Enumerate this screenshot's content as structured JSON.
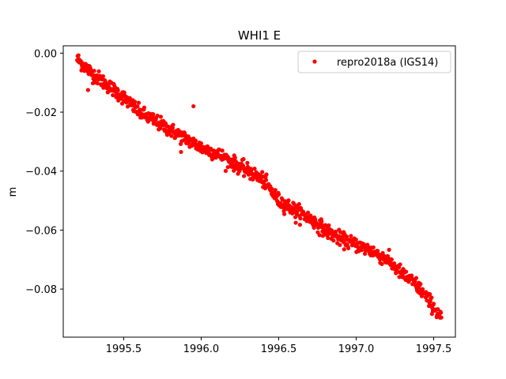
{
  "chart_data": {
    "type": "scatter",
    "title": "WHI1 E",
    "xlabel": "",
    "ylabel": "m",
    "xlim": [
      1995.11,
      1997.64
    ],
    "ylim": [
      -0.0963,
      0.0025
    ],
    "x_ticks": [
      "1995.5",
      "1996.0",
      "1996.5",
      "1997.0",
      "1997.5"
    ],
    "x_tick_values": [
      1995.5,
      1996.0,
      1996.5,
      1997.0,
      1997.5
    ],
    "y_ticks": [
      "0.00",
      "−0.02",
      "−0.04",
      "−0.06",
      "−0.08"
    ],
    "y_tick_values": [
      0.0,
      -0.02,
      -0.04,
      -0.06,
      -0.08
    ],
    "grid": false,
    "legend_position": "top-right",
    "series": [
      {
        "name": "repro2018a (IGS14)",
        "color": "#ff0000",
        "marker": "circle",
        "trend": {
          "x": [
            1995.2,
            1995.3,
            1995.4,
            1995.5,
            1995.6,
            1995.7,
            1995.8,
            1995.9,
            1996.0,
            1996.1,
            1996.2,
            1996.3,
            1996.4,
            1996.5,
            1996.6,
            1996.7,
            1996.8,
            1996.9,
            1997.0,
            1997.1,
            1997.2,
            1997.3,
            1997.4,
            1997.5,
            1997.55
          ],
          "y": [
            -0.002,
            -0.007,
            -0.011,
            -0.015,
            -0.02,
            -0.023,
            -0.026,
            -0.029,
            -0.032,
            -0.034,
            -0.037,
            -0.04,
            -0.043,
            -0.05,
            -0.053,
            -0.056,
            -0.06,
            -0.063,
            -0.065,
            -0.067,
            -0.07,
            -0.075,
            -0.079,
            -0.086,
            -0.09
          ]
        },
        "scatter_sd": 0.0012,
        "outliers": [
          {
            "x": 1995.27,
            "y": -0.0125
          },
          {
            "x": 1995.95,
            "y": -0.018
          },
          {
            "x": 1995.87,
            "y": -0.0335
          },
          {
            "x": 1996.61,
            "y": -0.0575
          },
          {
            "x": 1997.4,
            "y": -0.081
          }
        ]
      }
    ]
  }
}
